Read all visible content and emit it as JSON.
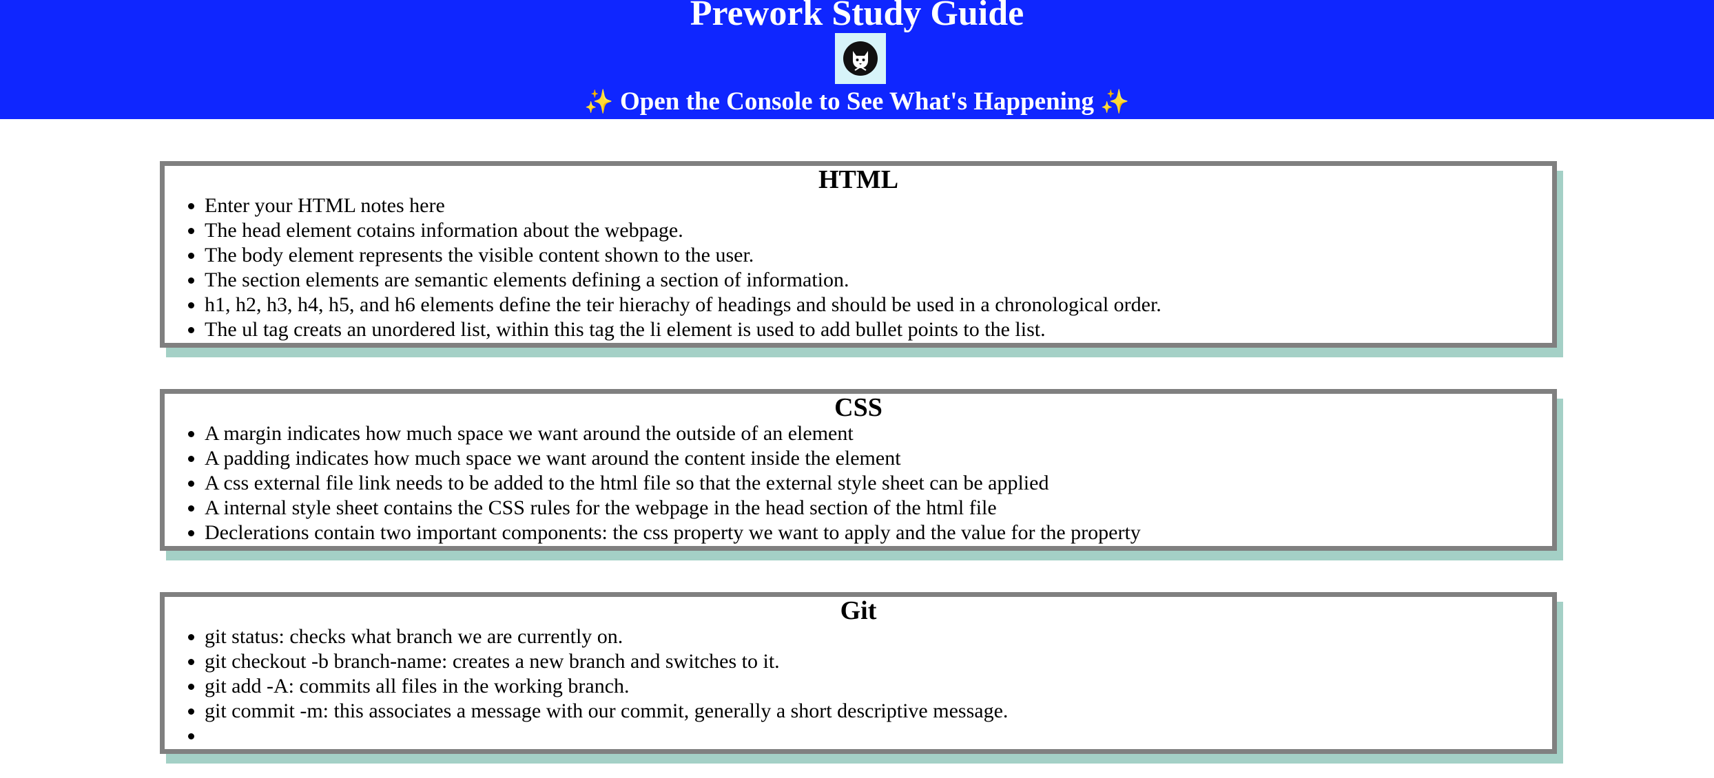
{
  "header": {
    "title": "Prework Study Guide",
    "logo_icon": "cat-avatar-icon",
    "subtitle_spark_left": "✨",
    "subtitle": "Open the Console to See What's Happening",
    "subtitle_spark_right": "✨",
    "background_color": "#0f26ff"
  },
  "sections": {
    "html": {
      "heading": "HTML",
      "items": [
        "Enter your HTML notes here",
        "The head element cotains information about the webpage.",
        "The body element represents the visible content shown to the user.",
        "The section elements are semantic elements defining a section of information.",
        "h1, h2, h3, h4, h5, and h6 elements define the teir hierachy of headings and should be used in a chronological order.",
        "The ul tag creats an unordered list, within this tag the li element is used to add bullet points to the list."
      ]
    },
    "css": {
      "heading": "CSS",
      "items": [
        "A margin indicates how much space we want around the outside of an element",
        "A padding indicates how much space we want around the content inside the element",
        "A css external file link needs to be added to the html file so that the external style sheet can be applied",
        "A internal style sheet contains the CSS rules for the webpage in the head section of the html file",
        "Declerations contain two important components: the css property we want to apply and the value for the property"
      ]
    },
    "git": {
      "heading": "Git",
      "items": [
        "git status: checks what branch we are currently on.",
        "git checkout -b branch-name: creates a new branch and switches to it.",
        "git add -A: commits all files in the working branch.",
        "git commit -m: this associates a message with our commit, generally a short descriptive message.",
        ""
      ]
    }
  },
  "colors": {
    "card_border": "#808080",
    "card_shadow": "#a4d0c6"
  }
}
